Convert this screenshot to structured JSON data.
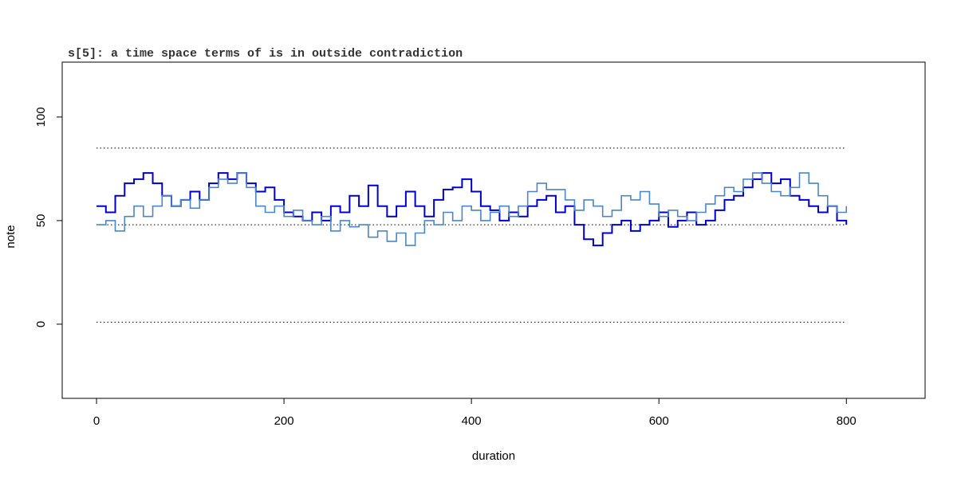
{
  "chart_data": {
    "type": "step",
    "title": "s[5]: a time space terms of is in outside contradiction",
    "x_label": "duration",
    "y_label": "note",
    "x": [
      0,
      10,
      20,
      30,
      40,
      50,
      60,
      70,
      80,
      90,
      100,
      110,
      120,
      130,
      140,
      150,
      160,
      170,
      180,
      190,
      200,
      210,
      220,
      230,
      240,
      250,
      260,
      270,
      280,
      290,
      300,
      310,
      320,
      330,
      340,
      350,
      360,
      370,
      380,
      390,
      400,
      410,
      420,
      430,
      440,
      450,
      460,
      470,
      480,
      490,
      500,
      510,
      520,
      530,
      540,
      550,
      560,
      570,
      580,
      590,
      600,
      610,
      620,
      630,
      640,
      650,
      660,
      670,
      680,
      690,
      700,
      710,
      720,
      730,
      740,
      750,
      760,
      770,
      780,
      790,
      800
    ],
    "series": [
      {
        "color": "#0000cd",
        "values": [
          57,
          54,
          62,
          68,
          70,
          73,
          68,
          62,
          57,
          60,
          64,
          60,
          68,
          73,
          70,
          73,
          68,
          64,
          66,
          60,
          54,
          52,
          50,
          54,
          50,
          57,
          54,
          62,
          57,
          67,
          57,
          52,
          57,
          64,
          57,
          52,
          60,
          65,
          66,
          70,
          64,
          57,
          55,
          50,
          54,
          52,
          57,
          60,
          62,
          54,
          57,
          48,
          41,
          38,
          44,
          48,
          50,
          45,
          48,
          50,
          54,
          47,
          50,
          54,
          48,
          50,
          55,
          60,
          62,
          66,
          70,
          73,
          68,
          70,
          62,
          60,
          57,
          54,
          57,
          50,
          48
        ]
      },
      {
        "color": "#4a86c8",
        "values": [
          48,
          50,
          45,
          52,
          57,
          52,
          57,
          62,
          57,
          60,
          56,
          60,
          66,
          70,
          68,
          73,
          66,
          57,
          54,
          57,
          52,
          55,
          50,
          48,
          52,
          45,
          50,
          47,
          48,
          42,
          45,
          40,
          44,
          38,
          44,
          50,
          48,
          54,
          50,
          57,
          55,
          50,
          54,
          57,
          52,
          57,
          64,
          68,
          65,
          65,
          60,
          55,
          60,
          57,
          52,
          55,
          62,
          60,
          64,
          58,
          52,
          55,
          52,
          50,
          54,
          58,
          62,
          66,
          64,
          70,
          73,
          68,
          64,
          62,
          66,
          73,
          68,
          62,
          57,
          54,
          57
        ]
      }
    ],
    "reference_lines": [
      85,
      48,
      1
    ],
    "xlim": [
      -36.6,
      884
    ],
    "ylim": [
      -35.8,
      126.5
    ],
    "xticks": [
      0,
      200,
      400,
      600,
      800
    ],
    "yticks": [
      0,
      50,
      100
    ]
  }
}
